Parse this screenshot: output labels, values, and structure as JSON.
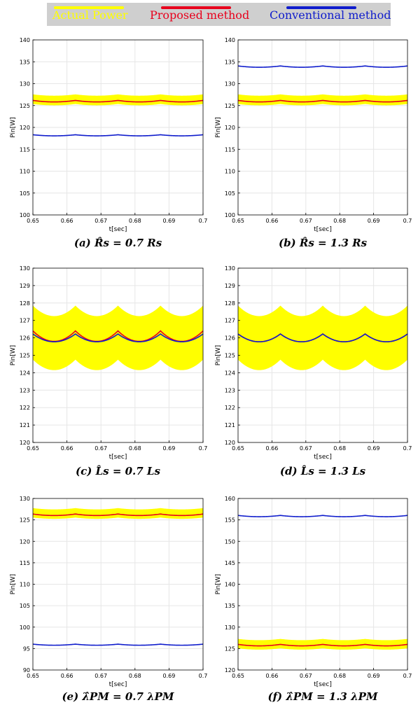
{
  "legend": {
    "items": [
      {
        "label": "Actual Power",
        "color": "#ffff00"
      },
      {
        "label": "Proposed method",
        "color": "#e8001c"
      },
      {
        "label": "Conventional method",
        "color": "#0f1ccc"
      }
    ],
    "background": "#cfcfcf"
  },
  "chart_data": [
    {
      "type": "line",
      "caption_tag": "(a)",
      "caption_eq": "R̂s = 0.7 Rs",
      "xlabel": "t[sec]",
      "ylabel": "Pin[W]",
      "xlim": [
        0.65,
        0.7
      ],
      "ylim": [
        100,
        140
      ],
      "xticks": [
        "0.65",
        "0.66",
        "0.67",
        "0.68",
        "0.69",
        "0.7"
      ],
      "yticks": [
        "100",
        "105",
        "110",
        "115",
        "120",
        "125",
        "130",
        "135",
        "140"
      ],
      "grid": true,
      "series": [
        {
          "name": "Actual Power",
          "center": 126.3,
          "band_halfwidth": 1.1,
          "ripple": 0.3
        },
        {
          "name": "Proposed method",
          "center": 126.0,
          "ripple": 0.35
        },
        {
          "name": "Conventional method",
          "center": 118.2,
          "ripple": 0.25
        }
      ]
    },
    {
      "type": "line",
      "caption_tag": "(b)",
      "caption_eq": "R̂s = 1.3 Rs",
      "xlabel": "t[sec]",
      "ylabel": "Pin[W]",
      "xlim": [
        0.65,
        0.7
      ],
      "ylim": [
        100,
        140
      ],
      "xticks": [
        "0.65",
        "0.66",
        "0.67",
        "0.68",
        "0.69",
        "0.7"
      ],
      "yticks": [
        "100",
        "105",
        "110",
        "115",
        "120",
        "125",
        "130",
        "135",
        "140"
      ],
      "grid": true,
      "series": [
        {
          "name": "Actual Power",
          "center": 126.3,
          "band_halfwidth": 1.1,
          "ripple": 0.3
        },
        {
          "name": "Proposed method",
          "center": 126.0,
          "ripple": 0.35
        },
        {
          "name": "Conventional method",
          "center": 133.9,
          "ripple": 0.3
        }
      ]
    },
    {
      "type": "line",
      "caption_tag": "(c)",
      "caption_eq": "L̂s = 0.7 Ls",
      "xlabel": "t[sec]",
      "ylabel": "Pin[W]",
      "xlim": [
        0.65,
        0.7
      ],
      "ylim": [
        120,
        130
      ],
      "xticks": [
        "0.65",
        "0.66",
        "0.67",
        "0.68",
        "0.69",
        "0.7"
      ],
      "yticks": [
        "120",
        "121",
        "122",
        "123",
        "124",
        "125",
        "126",
        "127",
        "128",
        "129",
        "130"
      ],
      "grid": true,
      "series": [
        {
          "name": "Actual Power",
          "center": 126.0,
          "band_halfwidth": 1.55,
          "ripple": 0.6
        },
        {
          "name": "Proposed method",
          "center": 126.1,
          "ripple": 0.6
        },
        {
          "name": "Conventional method",
          "center": 126.0,
          "ripple": 0.45
        }
      ]
    },
    {
      "type": "line",
      "caption_tag": "(d)",
      "caption_eq": "L̂s = 1.3 Ls",
      "xlabel": "t[sec]",
      "ylabel": "Pin[W]",
      "xlim": [
        0.65,
        0.7
      ],
      "ylim": [
        120,
        130
      ],
      "xticks": [
        "0.65",
        "0.66",
        "0.67",
        "0.68",
        "0.69",
        "0.7"
      ],
      "yticks": [
        "120",
        "121",
        "122",
        "123",
        "124",
        "125",
        "126",
        "127",
        "128",
        "129",
        "130"
      ],
      "grid": true,
      "series": [
        {
          "name": "Actual Power",
          "center": 126.0,
          "band_halfwidth": 1.55,
          "ripple": 0.6
        },
        {
          "name": "Proposed method",
          "center": 126.0,
          "ripple": 0.45
        },
        {
          "name": "Conventional method",
          "center": 126.0,
          "ripple": 0.45
        }
      ]
    },
    {
      "type": "line",
      "caption_tag": "(e)",
      "caption_eq": "λ̂PM = 0.7 λPM",
      "xlabel": "t[sec]",
      "ylabel": "Pin[W]",
      "xlim": [
        0.65,
        0.7
      ],
      "ylim": [
        90,
        130
      ],
      "xticks": [
        "0.65",
        "0.66",
        "0.67",
        "0.68",
        "0.69",
        "0.7"
      ],
      "yticks": [
        "90",
        "95",
        "100",
        "105",
        "110",
        "115",
        "120",
        "125",
        "130"
      ],
      "grid": true,
      "series": [
        {
          "name": "Actual Power",
          "center": 126.5,
          "band_halfwidth": 1.1,
          "ripple": 0.3
        },
        {
          "name": "Proposed method",
          "center": 126.2,
          "ripple": 0.35
        },
        {
          "name": "Conventional method",
          "center": 95.9,
          "ripple": 0.25
        }
      ]
    },
    {
      "type": "line",
      "caption_tag": "(f)",
      "caption_eq": "λ̂PM = 1.3 λPM",
      "xlabel": "t[sec]",
      "ylabel": "Pin[W]",
      "xlim": [
        0.65,
        0.7
      ],
      "ylim": [
        120,
        160
      ],
      "xticks": [
        "0.65",
        "0.66",
        "0.67",
        "0.68",
        "0.69",
        "0.7"
      ],
      "yticks": [
        "120",
        "125",
        "130",
        "135",
        "140",
        "145",
        "150",
        "155",
        "160"
      ],
      "grid": true,
      "series": [
        {
          "name": "Actual Power",
          "center": 126.0,
          "band_halfwidth": 1.1,
          "ripple": 0.3
        },
        {
          "name": "Proposed method",
          "center": 125.8,
          "ripple": 0.35
        },
        {
          "name": "Conventional method",
          "center": 155.9,
          "ripple": 0.3
        }
      ]
    }
  ]
}
